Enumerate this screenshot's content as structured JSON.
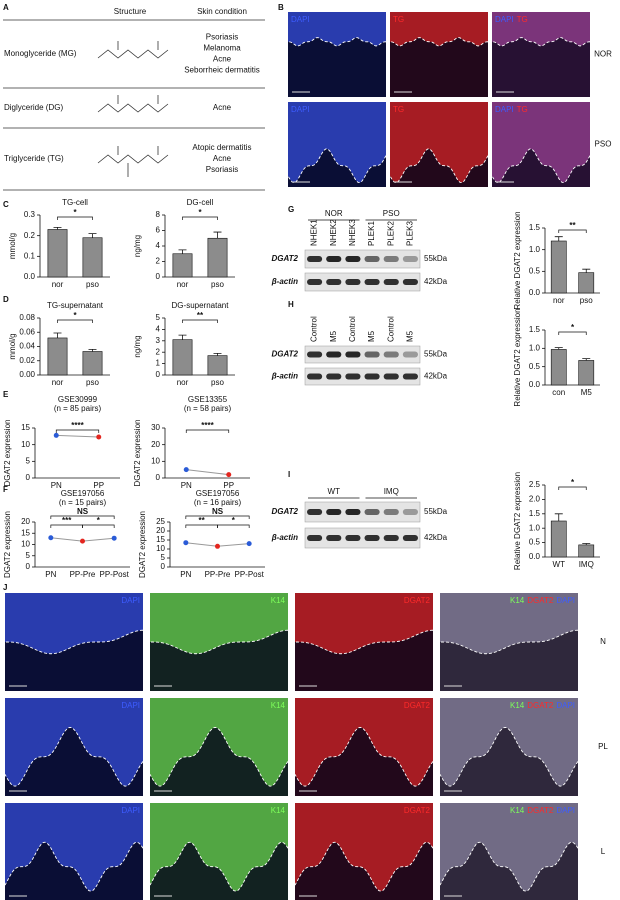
{
  "panel_labels": [
    "A",
    "B",
    "C",
    "D",
    "E",
    "F",
    "G",
    "H",
    "I",
    "J"
  ],
  "table": {
    "headers": [
      "Structure",
      "Skin condition"
    ],
    "rows": [
      {
        "name": "Monoglyceride (MG)",
        "conditions": [
          "Psoriasis",
          "Melanoma",
          "Acne",
          "Seborrheic dermatitis"
        ]
      },
      {
        "name": "Diglyceride (DG)",
        "conditions": [
          "Acne"
        ]
      },
      {
        "name": "Triglyceride (TG)",
        "conditions": [
          "Atopic dermatitis",
          "Acne",
          "Psoriasis"
        ]
      }
    ]
  },
  "micrograph_b": {
    "channels": [
      {
        "name": "DAPI",
        "color": "#3d5cff"
      },
      {
        "name": "TG",
        "color": "#ff2a2a"
      }
    ],
    "columns": [
      [
        0
      ],
      [
        1
      ],
      [
        0,
        1
      ]
    ],
    "rows": [
      "NOR",
      "PSO"
    ]
  },
  "micrograph_j": {
    "channels": [
      {
        "name": "DAPI",
        "color": "#3d5cff"
      },
      {
        "name": "K14",
        "color": "#7dff5a"
      },
      {
        "name": "DGAT2",
        "color": "#ff2a2a"
      }
    ],
    "columns": [
      [
        0
      ],
      [
        1
      ],
      [
        2
      ],
      [
        1,
        2,
        0
      ]
    ],
    "rows": [
      "N",
      "PL",
      "L"
    ]
  },
  "blots": [
    {
      "groups": [
        "NOR",
        "PSO"
      ],
      "lanes": [
        "NHEK1",
        "NHEK2",
        "NHEK3",
        "PLEK1",
        "PLEK2",
        "PLEK3"
      ],
      "proteins": [
        "DGAT2",
        "β-actin"
      ],
      "sizes": [
        "55kDa",
        "42kDa"
      ]
    },
    {
      "lanes": [
        "Control",
        "M5",
        "Control",
        "M5",
        "Control",
        "M5"
      ],
      "proteins": [
        "DGAT2",
        "β-actin"
      ],
      "sizes": [
        "55kDa",
        "42kDa"
      ]
    },
    {
      "groups": [
        "WT",
        "IMQ"
      ],
      "proteins": [
        "DGAT2",
        "β-actin"
      ],
      "sizes": [
        "55kDa",
        "42kDa"
      ]
    }
  ],
  "chart_data": [
    {
      "type": "bar",
      "title": "TG-cell",
      "ylabel": "mmol/g",
      "categories": [
        "nor",
        "pso"
      ],
      "values": [
        0.23,
        0.19
      ],
      "errors": [
        0.01,
        0.02
      ],
      "ylim": [
        0,
        0.3
      ],
      "yticks": [
        {
          "value": 0,
          "label": "0.0"
        },
        0.1,
        0.2,
        0.3
      ],
      "annotations": [
        "*"
      ],
      "color": "#8c8c8c"
    },
    {
      "type": "bar",
      "title": "DG-cell",
      "ylabel": "ng/mg",
      "categories": [
        "nor",
        "pso"
      ],
      "values": [
        3,
        5
      ],
      "errors": [
        0.5,
        0.8
      ],
      "ylim": [
        0,
        8
      ],
      "yticks": [
        0,
        2,
        4,
        6,
        8
      ],
      "annotations": [
        "*"
      ],
      "color": "#8c8c8c"
    },
    {
      "type": "bar",
      "title": "TG-supernatant",
      "ylabel": "mmol/g",
      "categories": [
        "nor",
        "pso"
      ],
      "values": [
        0.052,
        0.033
      ],
      "errors": [
        0.007,
        0.003
      ],
      "ylim": [
        0,
        0.08
      ],
      "yticks": [
        {
          "value": 0,
          "label": "0.00"
        },
        {
          "value": 0.02,
          "label": "0.02"
        },
        {
          "value": 0.04,
          "label": "0.04"
        },
        {
          "value": 0.06,
          "label": "0.06"
        },
        {
          "value": 0.08,
          "label": "0.08"
        }
      ],
      "annotations": [
        "*"
      ],
      "color": "#8c8c8c"
    },
    {
      "type": "bar",
      "title": "DG-supernatant",
      "ylabel": "ng/mg",
      "categories": [
        "nor",
        "pso"
      ],
      "values": [
        3.1,
        1.7
      ],
      "errors": [
        0.4,
        0.2
      ],
      "ylim": [
        0,
        5
      ],
      "yticks": [
        0,
        1,
        2,
        3,
        4,
        5
      ],
      "annotations": [
        "**"
      ],
      "color": "#8c8c8c"
    },
    {
      "type": "line",
      "title": "GSE30999",
      "subtitle": "(n = 85 pairs)",
      "ylabel": "DGAT2 expression",
      "categories": [
        "PN",
        "PP"
      ],
      "values": [
        12.8,
        12.3
      ],
      "colors": [
        "#2a5bd7",
        "#e3261f"
      ],
      "ylim": [
        0,
        15
      ],
      "yticks": [
        0,
        5,
        10,
        15
      ],
      "annotations": [
        "****"
      ]
    },
    {
      "type": "line",
      "title": "GSE13355",
      "subtitle": "(n = 58 pairs)",
      "ylabel": "DGAT2 expression",
      "categories": [
        "PN",
        "PP"
      ],
      "values": [
        5,
        2
      ],
      "colors": [
        "#2a5bd7",
        "#e3261f"
      ],
      "ylim": [
        0,
        30
      ],
      "yticks": [
        0,
        10,
        20,
        30
      ],
      "annotations": [
        "****"
      ]
    },
    {
      "type": "line",
      "title": "GSE197056",
      "subtitle": "(n = 15 pairs)",
      "ylabel": "DGAT2 expression",
      "categories": [
        "PN",
        "PP-Pre",
        "PP-Post"
      ],
      "values": [
        13,
        11.5,
        12.8
      ],
      "colors": [
        "#2a5bd7",
        "#e3261f",
        "#2a5bd7"
      ],
      "ylim": [
        0,
        20
      ],
      "yticks": [
        0,
        5,
        10,
        15,
        20
      ],
      "annotations": [
        "NS",
        "***",
        "*"
      ]
    },
    {
      "type": "line",
      "title": "GSE197056",
      "subtitle": "(n = 16 pairs)",
      "ylabel": "DGAT2 expression",
      "categories": [
        "PN",
        "PP-Pre",
        "PP-Post"
      ],
      "values": [
        13.5,
        11.5,
        13
      ],
      "colors": [
        "#2a5bd7",
        "#e3261f",
        "#2a5bd7"
      ],
      "ylim": [
        0,
        25
      ],
      "yticks": [
        0,
        5,
        10,
        15,
        20,
        25
      ],
      "annotations": [
        "NS",
        "**",
        "*"
      ]
    },
    {
      "type": "bar",
      "ylabel": "Relative DGAT2 expression",
      "categories": [
        "nor",
        "pso"
      ],
      "values": [
        1.2,
        0.47
      ],
      "errors": [
        0.1,
        0.08
      ],
      "ylim": [
        0,
        1.5
      ],
      "yticks": [
        {
          "value": 0,
          "label": "0.0"
        },
        0.5,
        {
          "value": 1,
          "label": "1.0"
        },
        1.5
      ],
      "annotations": [
        "**"
      ],
      "color": "#8c8c8c"
    },
    {
      "type": "bar",
      "ylabel": "Relative DGAT2 expression",
      "categories": [
        "con",
        "M5"
      ],
      "values": [
        0.97,
        0.67
      ],
      "errors": [
        0.05,
        0.05
      ],
      "ylim": [
        0,
        1.5
      ],
      "yticks": [
        {
          "value": 0,
          "label": "0.0"
        },
        0.5,
        {
          "value": 1,
          "label": "1.0"
        },
        1.5
      ],
      "annotations": [
        "*"
      ],
      "color": "#8c8c8c"
    },
    {
      "type": "bar",
      "ylabel": "Relative DGAT2 expression",
      "categories": [
        "WT",
        "IMQ"
      ],
      "values": [
        1.25,
        0.42
      ],
      "errors": [
        0.25,
        0.05
      ],
      "ylim": [
        0,
        2.5
      ],
      "yticks": [
        {
          "value": 0,
          "label": "0.0"
        },
        0.5,
        {
          "value": 1,
          "label": "1.0"
        },
        1.5,
        {
          "value": 2,
          "label": "2.0"
        },
        2.5
      ],
      "annotations": [
        "*"
      ],
      "color": "#8c8c8c"
    }
  ]
}
